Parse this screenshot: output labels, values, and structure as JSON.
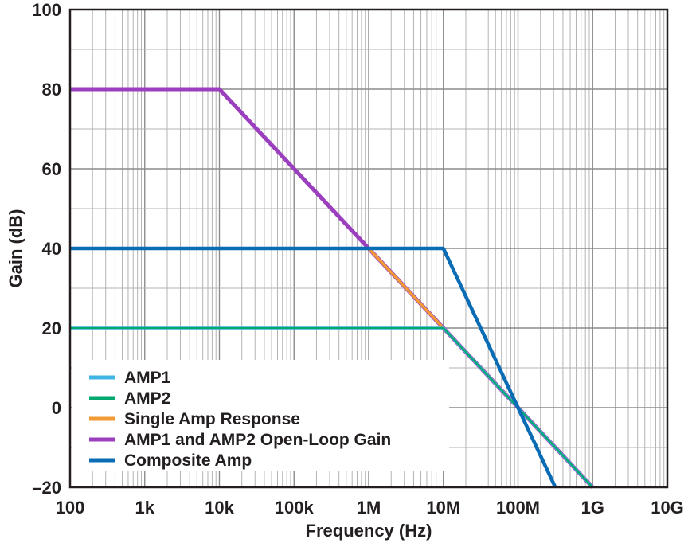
{
  "chart_data": {
    "type": "line",
    "xlabel": "Frequency (Hz)",
    "ylabel": "Gain (dB)",
    "xscale": "log",
    "xlim": [
      100,
      10000000000
    ],
    "ylim": [
      -20,
      100
    ],
    "grid": true,
    "legend_position": "bottom-left",
    "x_ticks": [
      {
        "value": 100,
        "label": "100"
      },
      {
        "value": 1000,
        "label": "1k"
      },
      {
        "value": 10000,
        "label": "10k"
      },
      {
        "value": 100000,
        "label": "100k"
      },
      {
        "value": 1000000,
        "label": "1M"
      },
      {
        "value": 10000000,
        "label": "10M"
      },
      {
        "value": 100000000,
        "label": "100M"
      },
      {
        "value": 1000000000,
        "label": "1G"
      },
      {
        "value": 10000000000,
        "label": "10G"
      }
    ],
    "y_ticks": [
      {
        "value": 100,
        "label": "100"
      },
      {
        "value": 80,
        "label": "80"
      },
      {
        "value": 60,
        "label": "60"
      },
      {
        "value": 40,
        "label": "40"
      },
      {
        "value": 20,
        "label": "20"
      },
      {
        "value": 0,
        "label": "0"
      },
      {
        "value": -20,
        "label": "–20"
      }
    ],
    "series": [
      {
        "name": "AMP1",
        "color": "#3fb5e5",
        "x": [
          100,
          10000000,
          1000000000
        ],
        "y": [
          20,
          20,
          -20
        ]
      },
      {
        "name": "AMP2",
        "color": "#00a76f",
        "x": [
          100,
          10000000,
          1000000000
        ],
        "y": [
          20,
          20,
          -20
        ]
      },
      {
        "name": "Single Amp Response",
        "color": "#f29a36",
        "x": [
          100,
          1000000,
          1000000000
        ],
        "y": [
          40,
          40,
          -20
        ]
      },
      {
        "name": "AMP1 and AMP2 Open-Loop Gain",
        "color": "#9b3fbf",
        "x": [
          100,
          10000,
          1000000000
        ],
        "y": [
          80,
          80,
          -20
        ]
      },
      {
        "name": "Composite Amp",
        "color": "#0a6cb5",
        "x": [
          100,
          10000000,
          316227766
        ],
        "y": [
          40,
          40,
          -20
        ]
      }
    ]
  }
}
